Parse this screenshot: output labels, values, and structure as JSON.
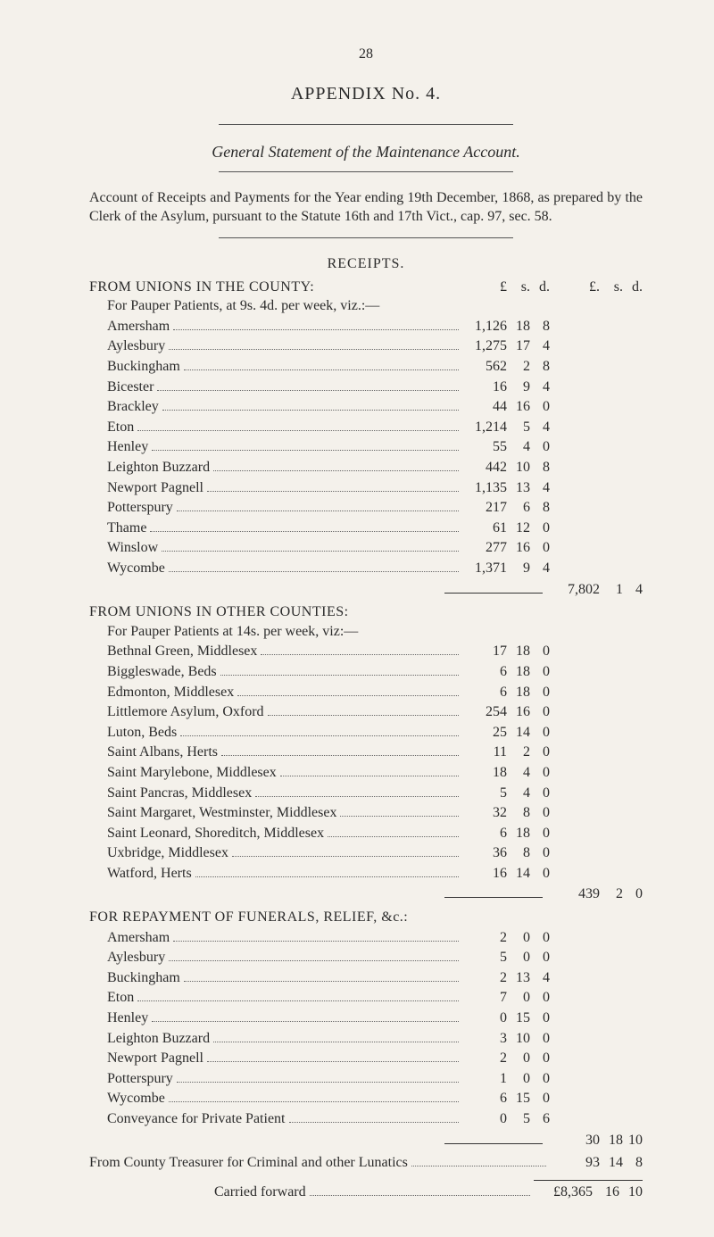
{
  "page_number": "28",
  "appendix_title": "APPENDIX No. 4.",
  "subtitle_italic": "General Statement of the Maintenance Account.",
  "intro": "Account of Receipts and Payments for the Year ending 19th December, 1868, as prepared by the Clerk of the Asylum, pursuant to the Statute 16th and 17th Vict., cap. 97, sec. 58.",
  "receipts_heading": "RECEIPTS.",
  "col_headers": {
    "p1": "£",
    "s1": "s.",
    "d1": "d.",
    "p2": "£.",
    "s2": "s.",
    "d2": "d."
  },
  "section_a": {
    "title": "FROM UNIONS IN THE COUNTY:",
    "sub": "For Pauper Patients, at 9s. 4d. per week, viz.:—",
    "rows": [
      {
        "label": "Amersham",
        "p": "1,126",
        "s": "18",
        "d": "8"
      },
      {
        "label": "Aylesbury",
        "p": "1,275",
        "s": "17",
        "d": "4"
      },
      {
        "label": "Buckingham",
        "p": "562",
        "s": "2",
        "d": "8"
      },
      {
        "label": "Bicester",
        "p": "16",
        "s": "9",
        "d": "4"
      },
      {
        "label": "Brackley",
        "p": "44",
        "s": "16",
        "d": "0"
      },
      {
        "label": "Eton",
        "p": "1,214",
        "s": "5",
        "d": "4"
      },
      {
        "label": "Henley",
        "p": "55",
        "s": "4",
        "d": "0"
      },
      {
        "label": "Leighton Buzzard",
        "p": "442",
        "s": "10",
        "d": "8"
      },
      {
        "label": "Newport Pagnell",
        "p": "1,135",
        "s": "13",
        "d": "4"
      },
      {
        "label": "Potterspury",
        "p": "217",
        "s": "6",
        "d": "8"
      },
      {
        "label": "Thame",
        "p": "61",
        "s": "12",
        "d": "0"
      },
      {
        "label": "Winslow",
        "p": "277",
        "s": "16",
        "d": "0"
      },
      {
        "label": "Wycombe",
        "p": "1,371",
        "s": "9",
        "d": "4"
      }
    ],
    "subtotal": {
      "p": "7,802",
      "s": "1",
      "d": "4"
    }
  },
  "section_b": {
    "title": "FROM UNIONS IN OTHER COUNTIES:",
    "sub": "For Pauper Patients at 14s. per week, viz:—",
    "rows": [
      {
        "label": "Bethnal Green, Middlesex",
        "p": "17",
        "s": "18",
        "d": "0"
      },
      {
        "label": "Biggleswade, Beds",
        "p": "6",
        "s": "18",
        "d": "0"
      },
      {
        "label": "Edmonton, Middlesex",
        "p": "6",
        "s": "18",
        "d": "0"
      },
      {
        "label": "Littlemore Asylum, Oxford",
        "p": "254",
        "s": "16",
        "d": "0"
      },
      {
        "label": "Luton, Beds",
        "p": "25",
        "s": "14",
        "d": "0"
      },
      {
        "label": "Saint Albans, Herts",
        "p": "11",
        "s": "2",
        "d": "0"
      },
      {
        "label": "Saint Marylebone, Middlesex",
        "p": "18",
        "s": "4",
        "d": "0"
      },
      {
        "label": "Saint Pancras, Middlesex",
        "p": "5",
        "s": "4",
        "d": "0"
      },
      {
        "label": "Saint Margaret, Westminster, Middlesex",
        "p": "32",
        "s": "8",
        "d": "0"
      },
      {
        "label": "Saint Leonard, Shoreditch, Middlesex",
        "p": "6",
        "s": "18",
        "d": "0"
      },
      {
        "label": "Uxbridge, Middlesex",
        "p": "36",
        "s": "8",
        "d": "0"
      },
      {
        "label": "Watford, Herts",
        "p": "16",
        "s": "14",
        "d": "0"
      }
    ],
    "subtotal": {
      "p": "439",
      "s": "2",
      "d": "0"
    }
  },
  "section_c": {
    "title": "FOR REPAYMENT OF FUNERALS, RELIEF, &c.:",
    "rows": [
      {
        "label": "Amersham",
        "p": "2",
        "s": "0",
        "d": "0"
      },
      {
        "label": "Aylesbury",
        "p": "5",
        "s": "0",
        "d": "0"
      },
      {
        "label": "Buckingham",
        "p": "2",
        "s": "13",
        "d": "4"
      },
      {
        "label": "Eton",
        "p": "7",
        "s": "0",
        "d": "0"
      },
      {
        "label": "Henley",
        "p": "0",
        "s": "15",
        "d": "0"
      },
      {
        "label": "Leighton Buzzard",
        "p": "3",
        "s": "10",
        "d": "0"
      },
      {
        "label": "Newport Pagnell",
        "p": "2",
        "s": "0",
        "d": "0"
      },
      {
        "label": "Potterspury",
        "p": "1",
        "s": "0",
        "d": "0"
      },
      {
        "label": "Wycombe",
        "p": "6",
        "s": "15",
        "d": "0"
      },
      {
        "label": "Conveyance for Private Patient",
        "p": "0",
        "s": "5",
        "d": "6"
      }
    ],
    "subtotal": {
      "p": "30",
      "s": "18",
      "d": "10"
    }
  },
  "treasurer_row": {
    "label": "From County Treasurer for Criminal and other Lunatics",
    "p": "93",
    "s": "14",
    "d": "8"
  },
  "carried": {
    "label": "Carried forward",
    "p": "£8,365",
    "s": "16",
    "d": "10"
  }
}
